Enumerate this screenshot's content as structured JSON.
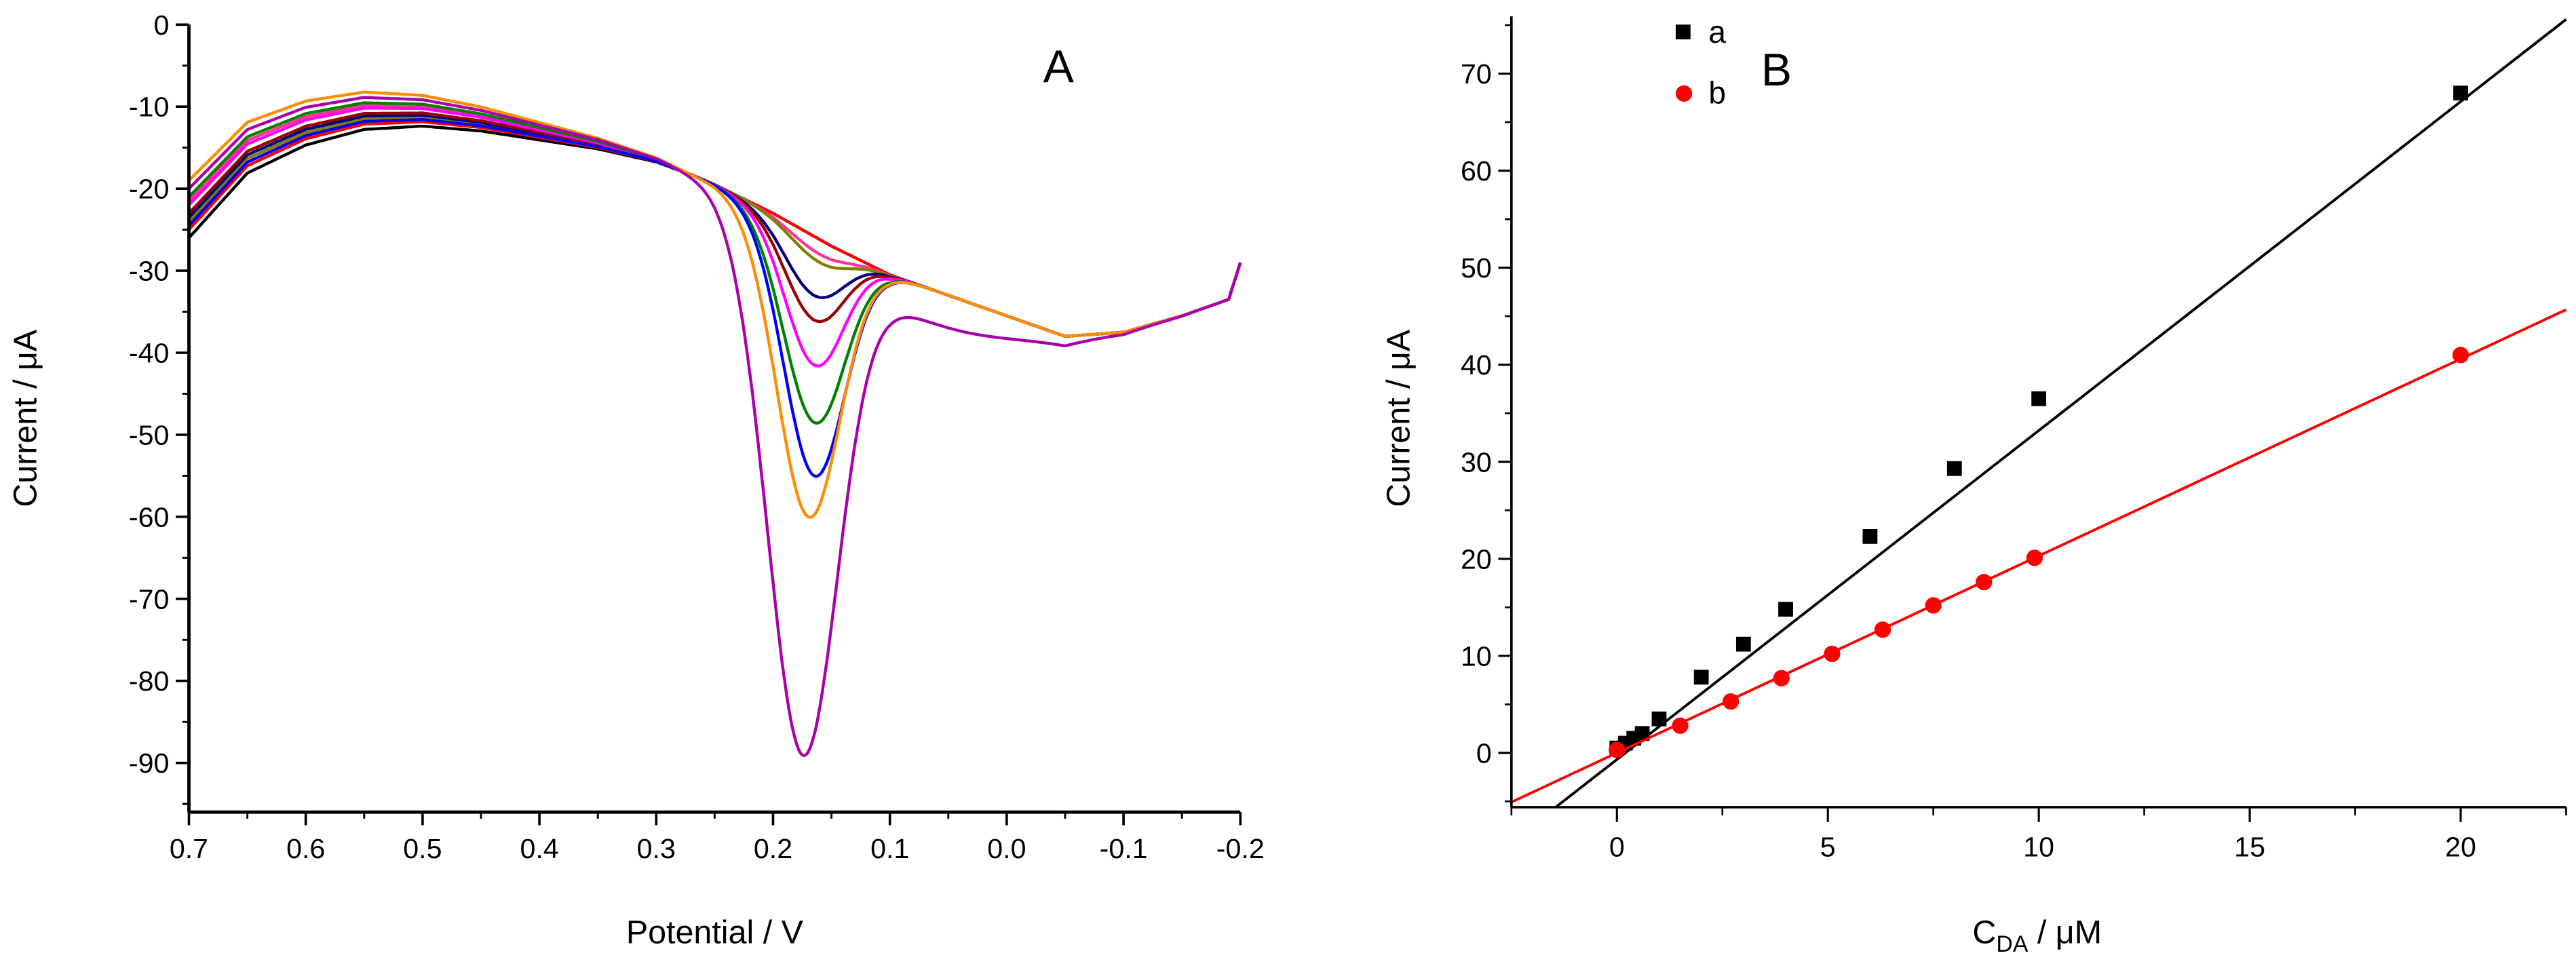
{
  "chart_data": [
    {
      "type": "line",
      "panel_label": "A",
      "xlabel": "Potential / V",
      "ylabel": "Current / μA",
      "xlim": [
        0.7,
        -0.2
      ],
      "ylim": [
        -96,
        0
      ],
      "x_reversed": true,
      "xticks": [
        "0.7",
        "0.6",
        "0.5",
        "0.4",
        "0.3",
        "0.2",
        "0.1",
        "0.0",
        "-0.1",
        "-0.2"
      ],
      "xtick_values": [
        0.7,
        0.6,
        0.5,
        0.4,
        0.3,
        0.2,
        0.1,
        0.0,
        -0.1,
        -0.2
      ],
      "yticks": [
        "0",
        "-10",
        "-20",
        "-30",
        "-40",
        "-50",
        "-60",
        "-70",
        "-80",
        "-90"
      ],
      "ytick_values": [
        0,
        -10,
        -20,
        -30,
        -40,
        -50,
        -60,
        -70,
        -80,
        -90
      ],
      "baseline": [
        [
          0.7,
          -22.5
        ],
        [
          0.65,
          -15
        ],
        [
          0.6,
          -12
        ],
        [
          0.55,
          -10.5
        ],
        [
          0.5,
          -10.5
        ],
        [
          0.45,
          -11.5
        ],
        [
          0.4,
          -13
        ],
        [
          0.35,
          -14.5
        ],
        [
          0.3,
          -16.5
        ],
        [
          0.25,
          -19.5
        ],
        [
          0.2,
          -23
        ],
        [
          0.15,
          -27
        ],
        [
          0.1,
          -30.5
        ],
        [
          0.05,
          -33
        ],
        [
          0.0,
          -35.5
        ],
        [
          -0.05,
          -38
        ],
        [
          -0.1,
          -37.5
        ],
        [
          -0.15,
          -35.5
        ],
        [
          -0.19,
          -33.5
        ],
        [
          -0.2,
          -29
        ]
      ],
      "series": [
        {
          "name": "black",
          "color": "#000000",
          "current_at_0.7": -26,
          "peak_potential": 0.17,
          "peak_current": null,
          "peak_width": 0.025
        },
        {
          "name": "red",
          "color": "#ff0000",
          "current_at_0.7": -25,
          "peak_potential": 0.17,
          "peak_current": null,
          "peak_width": 0.025
        },
        {
          "name": "pink",
          "color": "#ff3399",
          "current_at_0.7": -21.5,
          "peak_potential": 0.16,
          "peak_current": -28,
          "peak_width": 0.025
        },
        {
          "name": "olive",
          "color": "#808000",
          "current_at_0.7": -24,
          "peak_potential": 0.16,
          "peak_current": -29,
          "peak_width": 0.025
        },
        {
          "name": "navy",
          "color": "#000080",
          "current_at_0.7": -23.5,
          "peak_potential": 0.165,
          "peak_current": -33,
          "peak_width": 0.025
        },
        {
          "name": "darkred",
          "color": "#990000",
          "current_at_0.7": -23,
          "peak_potential": 0.165,
          "peak_current": -36,
          "peak_width": 0.025
        },
        {
          "name": "magenta",
          "color": "#ff00ff",
          "current_at_0.7": -22,
          "peak_potential": 0.165,
          "peak_current": -41.5,
          "peak_width": 0.025
        },
        {
          "name": "green",
          "color": "#008000",
          "current_at_0.7": -21,
          "peak_potential": 0.165,
          "peak_current": -48.5,
          "peak_width": 0.026
        },
        {
          "name": "blue",
          "color": "#0000ff",
          "current_at_0.7": -24.5,
          "peak_potential": 0.165,
          "peak_current": -55,
          "peak_width": 0.026
        },
        {
          "name": "orange",
          "color": "#ff8c00",
          "current_at_0.7": -19,
          "peak_potential": 0.17,
          "peak_current": -60,
          "peak_width": 0.027
        },
        {
          "name": "purple",
          "color": "#aa00aa",
          "current_at_0.7": -20,
          "peak_potential": 0.175,
          "peak_current": -88,
          "peak_width": 0.03
        }
      ]
    },
    {
      "type": "scatter",
      "panel_label": "B",
      "xlabel_main": "C",
      "xlabel_sub": "DA",
      "xlabel_unit": " / μM",
      "ylabel": "Current / μA",
      "xlim": [
        -2.5,
        22.5
      ],
      "ylim": [
        -5.6,
        75.9
      ],
      "xticks": [
        "0",
        "5",
        "10",
        "15",
        "20"
      ],
      "xtick_values": [
        0,
        5,
        10,
        15,
        20
      ],
      "yticks": [
        "0",
        "10",
        "20",
        "30",
        "40",
        "50",
        "60",
        "70"
      ],
      "ytick_values": [
        0,
        10,
        20,
        30,
        40,
        50,
        60,
        70
      ],
      "legend_position": "top-left",
      "series": [
        {
          "name": "a",
          "color": "#000000",
          "marker": "square",
          "x": [
            0,
            0.2,
            0.4,
            0.6,
            1,
            2,
            3,
            4,
            6,
            8,
            10,
            20
          ],
          "y": [
            0.5,
            1,
            1.5,
            2,
            3.5,
            7.8,
            11.2,
            14.8,
            22.3,
            29.3,
            36.5,
            68
          ],
          "fit": {
            "slope": 3.39,
            "intercept": -0.68
          }
        },
        {
          "name": "b",
          "color": "#ff0000",
          "marker": "circle",
          "x": [
            0,
            1.5,
            2.7,
            3.9,
            5.1,
            6.3,
            7.5,
            8.7,
            9.9,
            20
          ],
          "y": [
            0.3,
            2.8,
            5.3,
            7.7,
            10.2,
            12.7,
            15.2,
            17.6,
            20.1,
            41
          ],
          "fit": {
            "slope": 2.03,
            "intercept": 0
          }
        }
      ]
    }
  ]
}
